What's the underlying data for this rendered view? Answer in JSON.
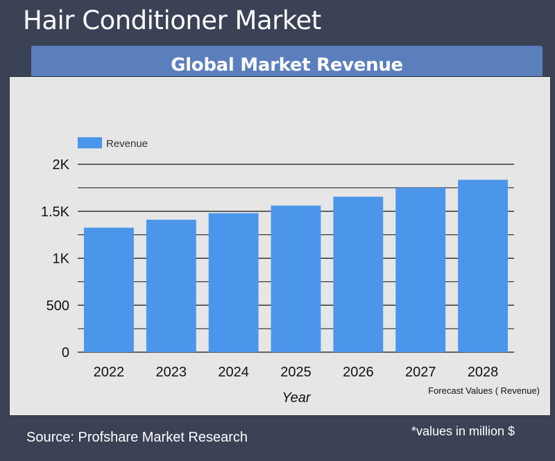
{
  "page": {
    "title": "Hair Conditioner Market",
    "banner": "Global Market Revenue",
    "source": "Source: Profshare Market Research",
    "note": "*values in million $"
  },
  "chart_data": {
    "type": "bar",
    "categories": [
      "2022",
      "2023",
      "2024",
      "2025",
      "2026",
      "2027",
      "2028"
    ],
    "series": [
      {
        "name": "Revenue",
        "values": [
          1325,
          1410,
          1480,
          1560,
          1655,
          1750,
          1835
        ]
      }
    ],
    "ylim": [
      0,
      2000
    ],
    "yticks": [
      0,
      500,
      1000,
      1500,
      2000
    ],
    "ytick_labels": [
      "0",
      "500",
      "1K",
      "1.5K",
      "2K"
    ],
    "xlabel": "Year",
    "ylabel": "",
    "annotation": "Forecast Values ( Revenue)",
    "legend_position": "top-left",
    "grid": true,
    "bar_color": "#4b96ea"
  }
}
